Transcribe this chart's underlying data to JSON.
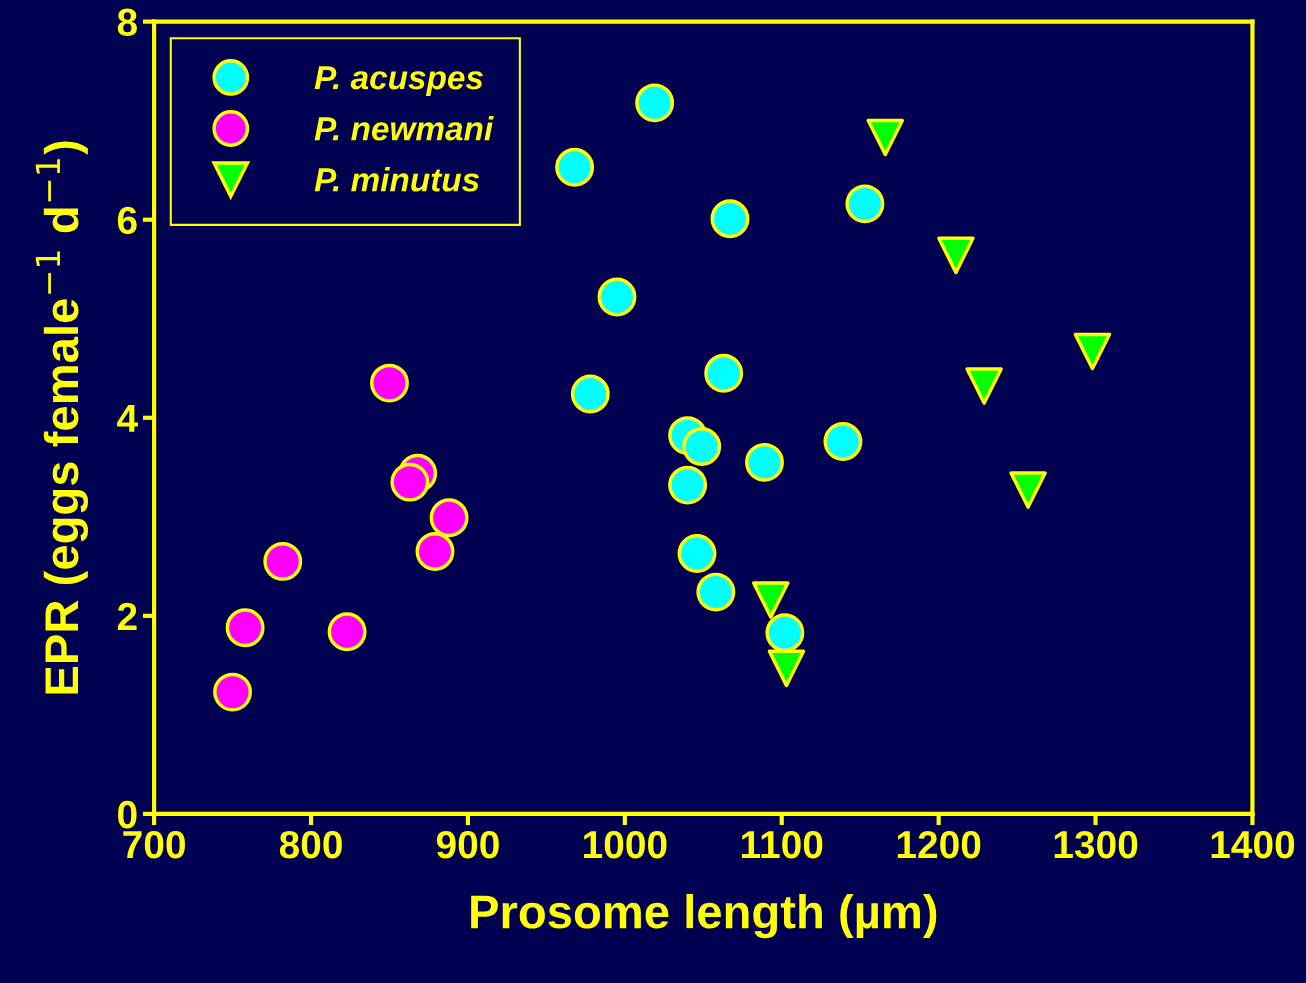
{
  "chart_data": {
    "type": "scatter",
    "xlabel": "Prosome length (µm)",
    "ylabel": "EPR (eggs female$^{−1}$ d$^{−1}$)",
    "xlim": [
      700,
      1400
    ],
    "xticks": [
      700,
      800,
      900,
      1000,
      1100,
      1200,
      1300,
      1400
    ],
    "ylim": [
      0,
      8
    ],
    "yticks": [
      0,
      2,
      4,
      6,
      8
    ],
    "grid": false,
    "legend": "top left",
    "series": [
      {
        "name": "P. acuspes",
        "color": "#00ffff",
        "marker": "circle",
        "x": [
          968,
          1019,
          1067,
          1153,
          995,
          978,
          1063,
          1040,
          1049,
          1040,
          1089,
          1139,
          1046,
          1058,
          1102
        ],
        "values": [
          6.53,
          7.18,
          6.01,
          6.16,
          5.22,
          4.24,
          4.45,
          3.82,
          3.71,
          3.32,
          3.55,
          3.76,
          2.63,
          2.24,
          1.83
        ]
      },
      {
        "name": "P. newmani",
        "color": "#ff00ff",
        "marker": "circle",
        "x": [
          850,
          868,
          863,
          888,
          879,
          782,
          758,
          823,
          750
        ],
        "values": [
          4.35,
          3.44,
          3.35,
          2.99,
          2.65,
          2.55,
          1.88,
          1.84,
          1.23
        ]
      },
      {
        "name": "P. minutus",
        "color": "#00ff00",
        "marker": "triangle",
        "x": [
          1166,
          1211,
          1229,
          1298,
          1257,
          1093,
          1103
        ],
        "values": [
          6.83,
          5.64,
          4.32,
          4.67,
          3.27,
          2.16,
          1.47
        ]
      }
    ]
  }
}
